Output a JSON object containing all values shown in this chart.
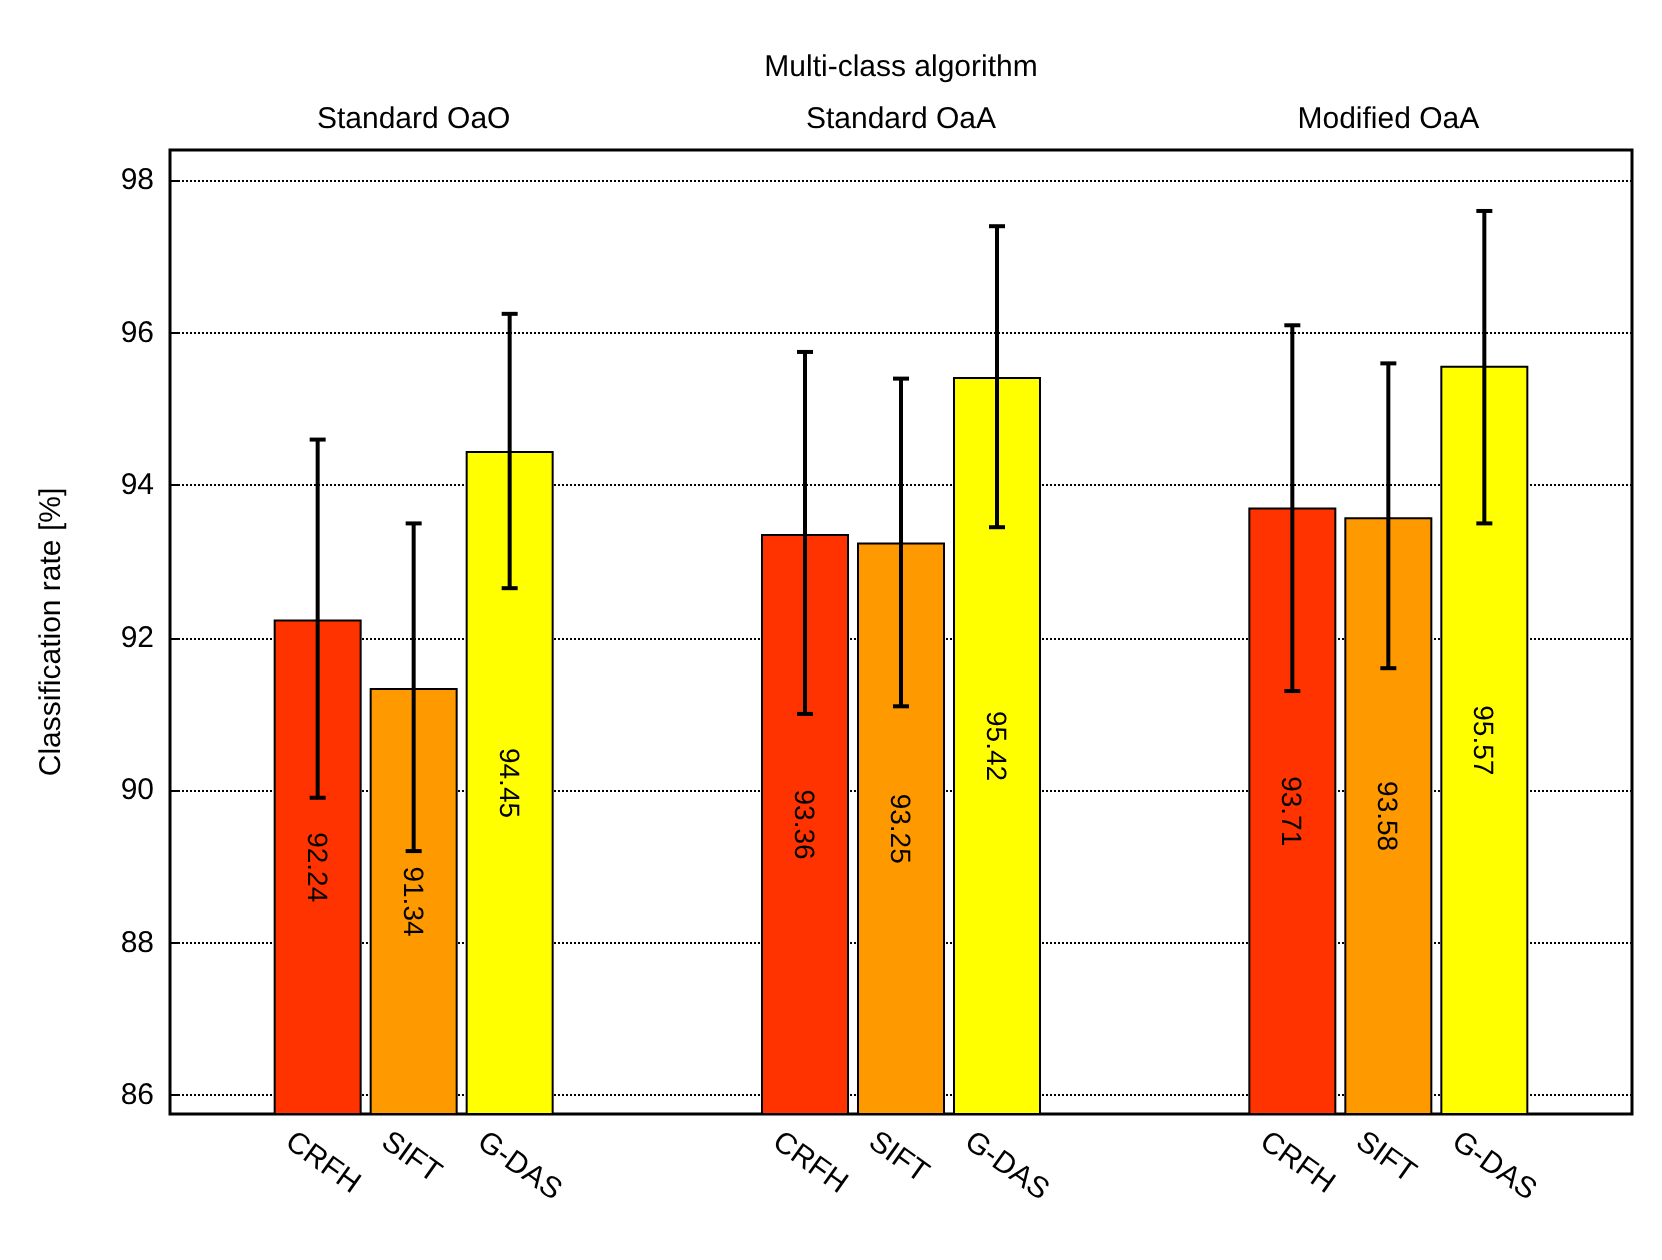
{
  "chart_data": {
    "type": "bar",
    "xlabel": "Multi-class algorithm",
    "ylabel": "Classification rate [%]",
    "categories": [
      "Standard OaO",
      "Standard OaA",
      "Modified OaA"
    ],
    "series": [
      {
        "name": "CRFH",
        "color": "#ff3300",
        "values": [
          92.24,
          93.36,
          93.71
        ],
        "errors": [
          [
            89.9,
            94.6
          ],
          [
            91.0,
            95.75
          ],
          [
            91.3,
            96.1
          ]
        ]
      },
      {
        "name": "SIFT",
        "color": "#ff9900",
        "values": [
          91.34,
          93.25,
          93.58
        ],
        "errors": [
          [
            89.2,
            93.5
          ],
          [
            91.1,
            95.4
          ],
          [
            91.6,
            95.6
          ]
        ]
      },
      {
        "name": "G-DAS",
        "color": "#ffff00",
        "values": [
          94.45,
          95.42,
          95.57
        ],
        "errors": [
          [
            92.65,
            96.25
          ],
          [
            93.45,
            97.4
          ],
          [
            93.5,
            97.6
          ]
        ]
      }
    ],
    "ylim": [
      85.75,
      98.4
    ],
    "yticks": [
      86,
      88,
      90,
      92,
      94,
      96,
      98
    ],
    "grid": "y",
    "data_labels": true,
    "legend": false
  }
}
